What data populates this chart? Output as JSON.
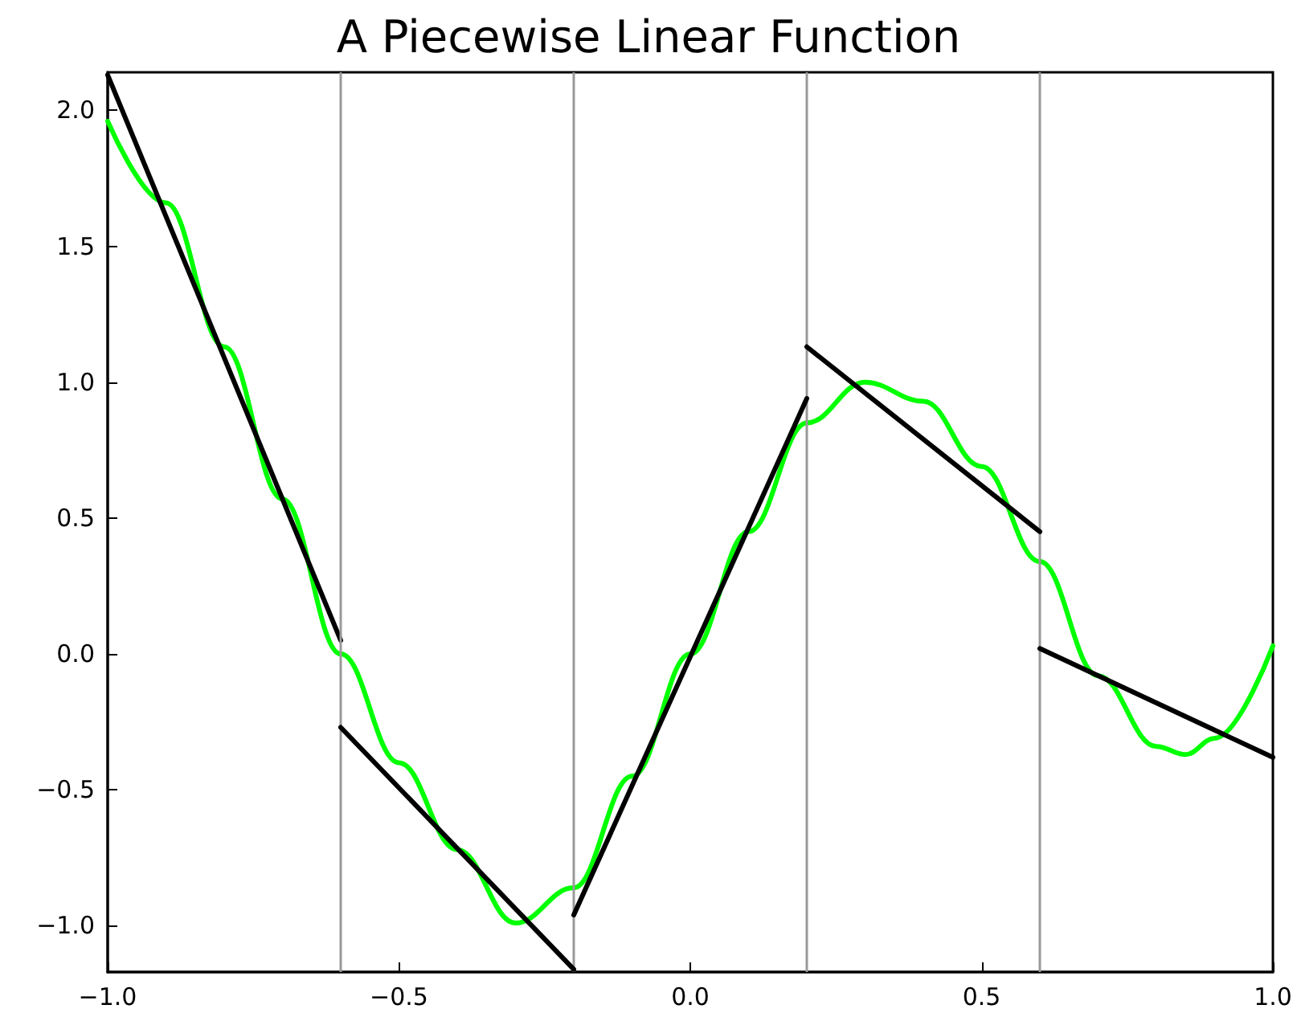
{
  "chart_data": {
    "type": "line",
    "title": "A Piecewise Linear Function",
    "xlim": [
      -1.0,
      1.0
    ],
    "ylim": [
      -1.17,
      2.14
    ],
    "xticks": [
      {
        "value": -1.0,
        "label": "−1.0"
      },
      {
        "value": -0.5,
        "label": "−0.5"
      },
      {
        "value": 0,
        "label": "0.0"
      },
      {
        "value": 0.5,
        "label": "0.5"
      },
      {
        "value": 1.0,
        "label": "1.0"
      }
    ],
    "yticks": [
      {
        "value": -1.0,
        "label": "−1.0"
      },
      {
        "value": -0.5,
        "label": "−0.5"
      },
      {
        "value": 0,
        "label": "0.0"
      },
      {
        "value": 0.5,
        "label": "0.5"
      },
      {
        "value": 1.0,
        "label": "1.0"
      },
      {
        "value": 1.5,
        "label": "1.5"
      },
      {
        "value": 2.0,
        "label": "2.0"
      }
    ],
    "grid": false,
    "marker": "none",
    "line_style": "solid",
    "series": [
      {
        "color": "#00ff00",
        "x": [
          -1.0,
          -0.9,
          -0.8,
          -0.7,
          -0.6,
          -0.5,
          -0.4,
          -0.3,
          -0.2,
          -0.1,
          0.0,
          0.1,
          0.2,
          0.3,
          0.4,
          0.5,
          0.6,
          0.7,
          0.8,
          0.85,
          0.9,
          1.0
        ],
        "values": [
          1.96,
          1.66,
          1.13,
          0.57,
          0.0,
          -0.4,
          -0.72,
          -0.99,
          -0.86,
          -0.45,
          0.0,
          0.45,
          0.85,
          1.0,
          0.93,
          0.69,
          0.34,
          -0.08,
          -0.34,
          -0.37,
          -0.31,
          0.03
        ]
      },
      {
        "color": "#000000",
        "x": [
          -1.0,
          -0.6
        ],
        "values": [
          2.13,
          0.05
        ]
      },
      {
        "color": "#000000",
        "x": [
          -0.6,
          -0.2
        ],
        "values": [
          -0.27,
          -1.16
        ]
      },
      {
        "color": "#000000",
        "x": [
          -0.2,
          0.2
        ],
        "values": [
          -0.96,
          0.94
        ]
      },
      {
        "color": "#000000",
        "x": [
          0.2,
          0.6
        ],
        "values": [
          1.13,
          0.45
        ]
      },
      {
        "color": "#000000",
        "x": [
          0.6,
          1.0
        ],
        "values": [
          0.02,
          -0.38
        ]
      }
    ],
    "ref_lines": [
      {
        "axis": "x",
        "value": -0.6,
        "color": "#999999"
      },
      {
        "axis": "x",
        "value": -0.2,
        "color": "#999999"
      },
      {
        "axis": "x",
        "value": 0.2,
        "color": "#999999"
      },
      {
        "axis": "x",
        "value": 0.6,
        "color": "#999999"
      }
    ]
  }
}
